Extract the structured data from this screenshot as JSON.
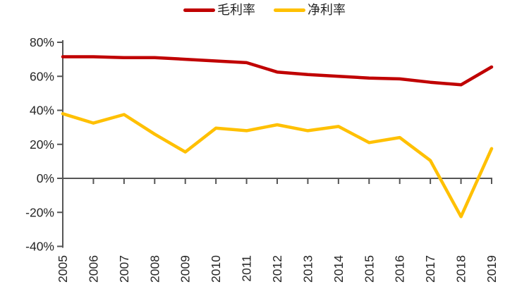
{
  "chart_data": {
    "type": "line",
    "title": "",
    "xlabel": "",
    "ylabel": "",
    "categories": [
      "2005",
      "2006",
      "2007",
      "2008",
      "2009",
      "2010",
      "2011",
      "2012",
      "2013",
      "2014",
      "2015",
      "2016",
      "2017",
      "2018",
      "2019"
    ],
    "series": [
      {
        "name": "毛利率",
        "color": "#C00000",
        "values": [
          71.5,
          71.5,
          71,
          71,
          70,
          69,
          68,
          62.5,
          61,
          60,
          59,
          58.5,
          56.5,
          55,
          65.5
        ]
      },
      {
        "name": "净利率",
        "color": "#FFC000",
        "values": [
          38,
          32.5,
          37.5,
          26,
          15.5,
          29.5,
          28,
          31.5,
          28,
          30.5,
          21,
          24,
          10.5,
          -22.5,
          17.5
        ]
      }
    ],
    "ylim": [
      -40,
      80
    ],
    "yticks": [
      80,
      60,
      40,
      20,
      0,
      -20,
      -40
    ],
    "ytick_labels": [
      "80%",
      "60%",
      "40%",
      "20%",
      "0%",
      "-20%",
      "-40%"
    ],
    "x_label_rotation": -90,
    "grid": false,
    "legend_position": "top-center"
  },
  "legend": {
    "items": [
      {
        "label": "毛利率",
        "color": "#C00000"
      },
      {
        "label": "净利率",
        "color": "#FFC000"
      }
    ]
  },
  "colors": {
    "axis": "#555555",
    "tick_text": "#262626",
    "background": "#FFFFFF"
  }
}
